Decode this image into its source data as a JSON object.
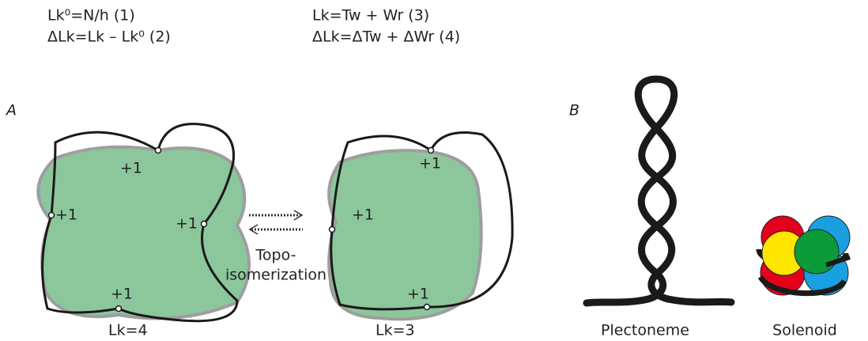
{
  "equations": [
    "Lk⁰=N/h (1)",
    "ΔLk=Lk – Lk⁰ (2)",
    "Lk=Tw + Wr (3)",
    "ΔLk=ΔTw + ΔWr (4)"
  ],
  "panels": [
    {
      "label": "A",
      "left": {
        "caption": "Lk=4",
        "crossings": [
          "+1",
          "+1",
          "+1",
          "+1"
        ]
      },
      "right": {
        "caption": "Lk=3",
        "crossings": [
          "+1",
          "+1",
          "+1"
        ]
      },
      "arrow_label": [
        "Topo-",
        "isomerization"
      ]
    },
    {
      "label": "B",
      "items": [
        "Plectoneme",
        "Solenoid"
      ]
    }
  ]
}
